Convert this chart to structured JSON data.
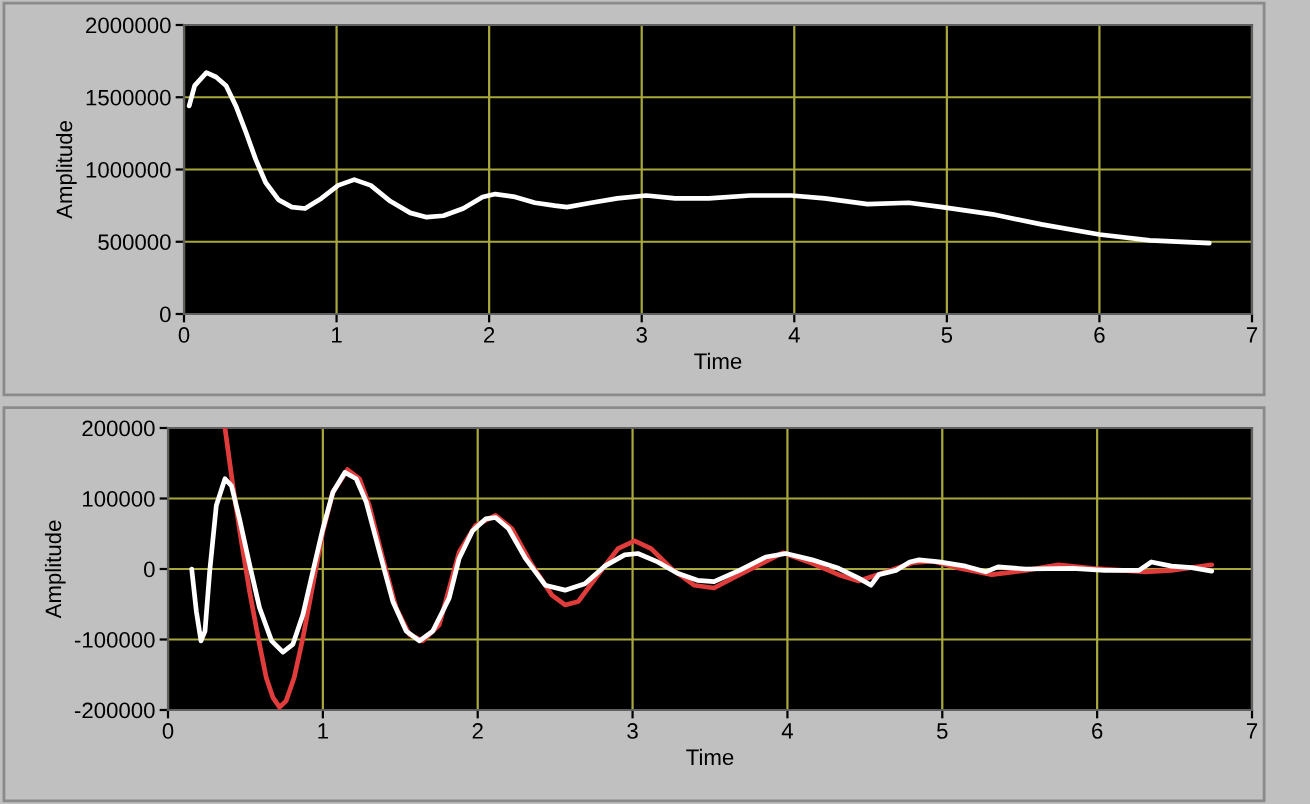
{
  "chart_data": [
    {
      "type": "line",
      "xlabel": "Time",
      "ylabel": "Amplitude",
      "xlim": [
        0,
        7
      ],
      "xticks": [
        0,
        1,
        2,
        3,
        4,
        5,
        6,
        7
      ],
      "ylim": [
        0,
        2000000
      ],
      "yticks": [
        0,
        500000,
        1000000,
        1500000,
        2000000
      ],
      "grid": true,
      "series": [
        {
          "color": "#ffffff",
          "x": [
            0.034,
            0.07,
            0.147,
            0.21,
            0.276,
            0.34,
            0.405,
            0.47,
            0.535,
            0.62,
            0.707,
            0.793,
            0.9,
            1.01,
            1.116,
            1.224,
            1.353,
            1.483,
            1.59,
            1.7,
            1.83,
            1.957,
            2.04,
            2.17,
            2.3,
            2.43,
            2.51,
            2.67,
            2.84,
            3.03,
            3.22,
            3.44,
            3.71,
            3.98,
            4.2,
            4.48,
            4.75,
            4.97,
            5.3,
            5.62,
            6.0,
            6.33,
            6.72
          ],
          "values": [
            1440000,
            1580000,
            1670000,
            1640000,
            1580000,
            1440000,
            1260000,
            1070000,
            910000,
            790000,
            740000,
            730000,
            800000,
            890000,
            930000,
            890000,
            780000,
            700000,
            670000,
            680000,
            730000,
            810000,
            830000,
            810000,
            770000,
            750000,
            740000,
            770000,
            800000,
            820000,
            800000,
            800000,
            820000,
            820000,
            800000,
            760000,
            770000,
            740000,
            690000,
            620000,
            550000,
            510000,
            490000
          ]
        }
      ]
    },
    {
      "type": "line",
      "xlabel": "Time",
      "ylabel": "Amplitude",
      "xlim": [
        0,
        7
      ],
      "xticks": [
        0,
        1,
        2,
        3,
        4,
        5,
        6,
        7
      ],
      "ylim": [
        -200000,
        200000
      ],
      "yticks": [
        -200000,
        -100000,
        0,
        100000,
        200000
      ],
      "grid": true,
      "series": [
        {
          "color": "#e03c3c",
          "x": [
            0.368,
            0.419,
            0.471,
            0.527,
            0.583,
            0.634,
            0.677,
            0.72,
            0.763,
            0.815,
            0.871,
            0.935,
            1.0,
            1.065,
            1.159,
            1.237,
            1.3,
            1.387,
            1.473,
            1.559,
            1.645,
            1.752,
            1.88,
            1.987,
            2.115,
            2.222,
            2.35,
            2.479,
            2.564,
            2.65,
            2.778,
            2.906,
            3.013,
            3.12,
            3.248,
            3.397,
            3.526,
            3.69,
            3.97,
            4.16,
            4.33,
            4.46,
            4.64,
            4.81,
            4.94,
            5.11,
            5.32,
            5.54,
            5.75,
            5.97,
            6.31,
            6.48,
            6.74
          ],
          "values": [
            200000,
            118000,
            43000,
            -32000,
            -98000,
            -154000,
            -182000,
            -196000,
            -187000,
            -154000,
            -98000,
            -23000,
            53000,
            109000,
            141000,
            128000,
            90000,
            15000,
            -55000,
            -93000,
            -102000,
            -79000,
            24000,
            62000,
            76000,
            57000,
            6000,
            -37000,
            -51000,
            -46000,
            -8000,
            29000,
            40000,
            29000,
            1000,
            -23000,
            -27000,
            -8000,
            23000,
            8000,
            -8000,
            -17000,
            -4000,
            9000,
            11000,
            1000,
            -8000,
            -2000,
            6000,
            1000,
            -4000,
            -2000,
            6000
          ]
        },
        {
          "color": "#ffffff",
          "x": [
            0.153,
            0.183,
            0.213,
            0.239,
            0.269,
            0.312,
            0.368,
            0.41,
            0.462,
            0.527,
            0.591,
            0.669,
            0.742,
            0.806,
            0.871,
            0.935,
            1.0,
            1.065,
            1.142,
            1.215,
            1.28,
            1.366,
            1.452,
            1.538,
            1.624,
            1.71,
            1.774,
            1.816,
            1.88,
            1.966,
            2.051,
            2.115,
            2.2,
            2.308,
            2.436,
            2.564,
            2.692,
            2.82,
            2.949,
            3.034,
            3.162,
            3.29,
            3.419,
            3.526,
            3.69,
            3.86,
            3.99,
            4.16,
            4.33,
            4.46,
            4.54,
            4.59,
            4.7,
            4.79,
            4.85,
            4.98,
            5.15,
            5.28,
            5.36,
            5.54,
            5.84,
            6.05,
            6.27,
            6.35,
            6.48,
            6.61,
            6.74
          ],
          "values": [
            0,
            -60000,
            -102000,
            -88000,
            -4000,
            90000,
            128000,
            118000,
            71000,
            6000,
            -55000,
            -102000,
            -118000,
            -107000,
            -65000,
            -4000,
            57000,
            109000,
            137000,
            128000,
            95000,
            24000,
            -46000,
            -88000,
            -102000,
            -88000,
            -60000,
            -41000,
            15000,
            54000,
            71000,
            73000,
            57000,
            15000,
            -23000,
            -30000,
            -21000,
            4000,
            20000,
            22000,
            10000,
            -6000,
            -16000,
            -18000,
            -2000,
            17000,
            22000,
            13000,
            1000,
            -13000,
            -23000,
            -8000,
            -2000,
            10000,
            13000,
            10000,
            4000,
            -4000,
            3000,
            0,
            1000,
            -2000,
            -2000,
            10000,
            4000,
            2000,
            -3000
          ]
        }
      ]
    }
  ]
}
